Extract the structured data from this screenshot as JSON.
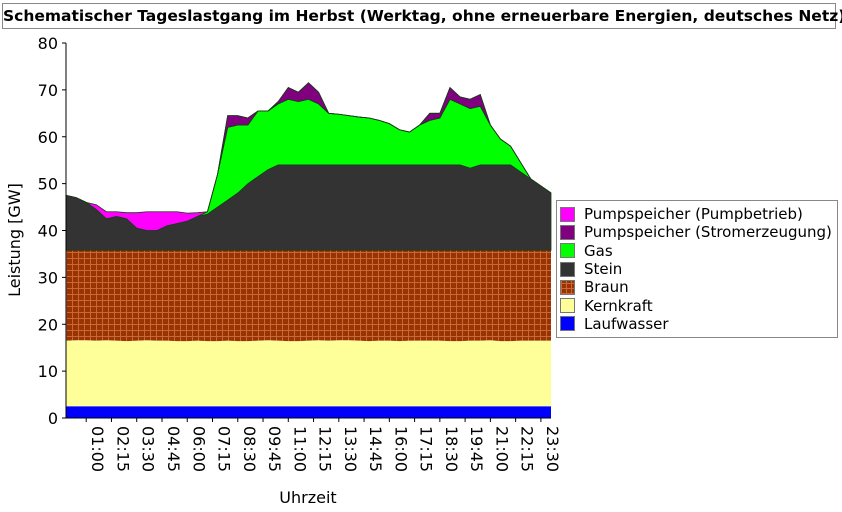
{
  "title": "Schematischer Tageslastgang im Herbst (Werktag, ohne erneuerbare Energien, deutsches Netz)",
  "chart_data": {
    "type": "area",
    "stacked": true,
    "title": "Schematischer Tageslastgang im Herbst (Werktag, ohne erneuerbare Energien, deutsches Netz)",
    "xlabel": "Uhrzeit",
    "ylabel": "Leistung [GW]",
    "xlim_hours": [
      0,
      24
    ],
    "ylim": [
      0,
      80
    ],
    "yticks": [
      0,
      10,
      20,
      30,
      40,
      50,
      60,
      70,
      80
    ],
    "xtick_hours": [
      1,
      2.25,
      3.5,
      4.75,
      6,
      7.25,
      8.5,
      9.75,
      11,
      12.25,
      13.5,
      14.75,
      16,
      17.25,
      18.5,
      19.75,
      21,
      22.25,
      23.5
    ],
    "xtick_labels": [
      "01:00",
      "02:15",
      "03:30",
      "04:45",
      "06:00",
      "07:15",
      "08:30",
      "09:45",
      "11:00",
      "12:15",
      "13:30",
      "14:45",
      "16:00",
      "17:15",
      "18:30",
      "19:45",
      "21:00",
      "22:15",
      "23:30"
    ],
    "legend_position": "right",
    "x_step_hours": 0.5,
    "series": [
      {
        "name": "Laufwasser",
        "color": "#0000ff",
        "values": [
          2.5,
          2.5,
          2.5,
          2.5,
          2.5,
          2.5,
          2.5,
          2.5,
          2.5,
          2.5,
          2.5,
          2.5,
          2.5,
          2.5,
          2.5,
          2.5,
          2.5,
          2.5,
          2.5,
          2.5,
          2.5,
          2.5,
          2.5,
          2.5,
          2.5,
          2.5,
          2.5,
          2.5,
          2.5,
          2.5,
          2.5,
          2.5,
          2.5,
          2.5,
          2.5,
          2.5,
          2.5,
          2.5,
          2.5,
          2.5,
          2.5,
          2.5,
          2.5,
          2.5,
          2.5,
          2.5,
          2.5,
          2.5,
          2.5
        ]
      },
      {
        "name": "Kernkraft",
        "color": "#ffff99",
        "values": [
          14,
          14.1,
          14.1,
          14,
          14.1,
          14,
          13.9,
          14,
          14.1,
          14,
          14,
          13.9,
          13.9,
          14,
          13.9,
          13.9,
          14,
          13.9,
          13.9,
          14,
          14.1,
          14,
          13.9,
          13.9,
          14,
          14.1,
          14,
          14.1,
          14.1,
          14,
          13.9,
          14,
          14,
          13.9,
          14,
          14,
          14,
          14,
          13.9,
          13.9,
          14,
          14,
          14.1,
          13.9,
          13.9,
          14,
          14,
          14,
          14
        ]
      },
      {
        "name": "Braun",
        "color": "#993300",
        "values": [
          19.3,
          19.2,
          19.2,
          19.3,
          19.2,
          19.3,
          19.4,
          19.3,
          19.2,
          19.3,
          19.3,
          19.4,
          19.4,
          19.3,
          19.4,
          19.4,
          19.3,
          19.4,
          19.4,
          19.3,
          19.2,
          19.3,
          19.4,
          19.4,
          19.3,
          19.2,
          19.3,
          19.2,
          19.2,
          19.3,
          19.4,
          19.3,
          19.3,
          19.4,
          19.3,
          19.3,
          19.3,
          19.3,
          19.4,
          19.4,
          19.3,
          19.3,
          19.2,
          19.4,
          19.4,
          19.3,
          19.3,
          19.3,
          19.3
        ]
      },
      {
        "name": "Stein",
        "color": "#333333",
        "values": [
          11.7,
          11.2,
          10.2,
          8.7,
          6.7,
          7.2,
          6.7,
          4.7,
          4.2,
          4.2,
          5.2,
          5.7,
          6.2,
          7.2,
          7.7,
          9.2,
          10.7,
          12.2,
          14.2,
          15.7,
          17.2,
          18.2,
          18.2,
          18.2,
          18.2,
          18.2,
          18.2,
          18.2,
          18.2,
          18.2,
          18.2,
          18.2,
          18.2,
          18.2,
          18.2,
          18.2,
          18.2,
          18.2,
          18.2,
          18.2,
          17.5,
          18.2,
          18.2,
          18.2,
          18.2,
          16.7,
          15.2,
          13.7,
          12.2
        ]
      },
      {
        "name": "Gas",
        "color": "#00ff00",
        "values": [
          0,
          0,
          0,
          0,
          0,
          0,
          0,
          0,
          0,
          0,
          0,
          0,
          0,
          0,
          0.5,
          7,
          15.5,
          14.5,
          12.5,
          14,
          12.5,
          13,
          14,
          13.5,
          14,
          13,
          11,
          10.8,
          10.5,
          10.2,
          10,
          9.5,
          8.8,
          7.5,
          7,
          8.5,
          9.5,
          10,
          14,
          13,
          12.7,
          12.5,
          8.5,
          5.5,
          4,
          2,
          0,
          0,
          0
        ]
      },
      {
        "name": "Pumpspeicher (Stromerzeugung)",
        "color": "#800080",
        "values": [
          0,
          0,
          0,
          0,
          0,
          0,
          0,
          0,
          0,
          0,
          0,
          0,
          0,
          0,
          0,
          0,
          2.5,
          2,
          1.5,
          0,
          0,
          0.5,
          2.5,
          2,
          3.5,
          2.5,
          0,
          0,
          0,
          0,
          0,
          0,
          0,
          0,
          0,
          0,
          1.5,
          1,
          2.5,
          1.5,
          2,
          2.5,
          0,
          0,
          0,
          0,
          0,
          0,
          0
        ]
      },
      {
        "name": "Pumpspeicher (Pumpbetrieb)",
        "color": "#ff00ff",
        "values": [
          0,
          0,
          0,
          1,
          1.5,
          1,
          1.3,
          3.3,
          4,
          4,
          3,
          2.5,
          1.7,
          0.8,
          0,
          0,
          0,
          0,
          0,
          0,
          0,
          0,
          0,
          0,
          0,
          0,
          0,
          0,
          0,
          0,
          0,
          0,
          0,
          0,
          0,
          0,
          0,
          0,
          0,
          0,
          0,
          0,
          0,
          0,
          0,
          0,
          0,
          0,
          0
        ]
      }
    ],
    "legend_order": [
      "Pumpspeicher (Pumpbetrieb)",
      "Pumpspeicher (Stromerzeugung)",
      "Gas",
      "Stein",
      "Braun",
      "Kernkraft",
      "Laufwasser"
    ]
  }
}
